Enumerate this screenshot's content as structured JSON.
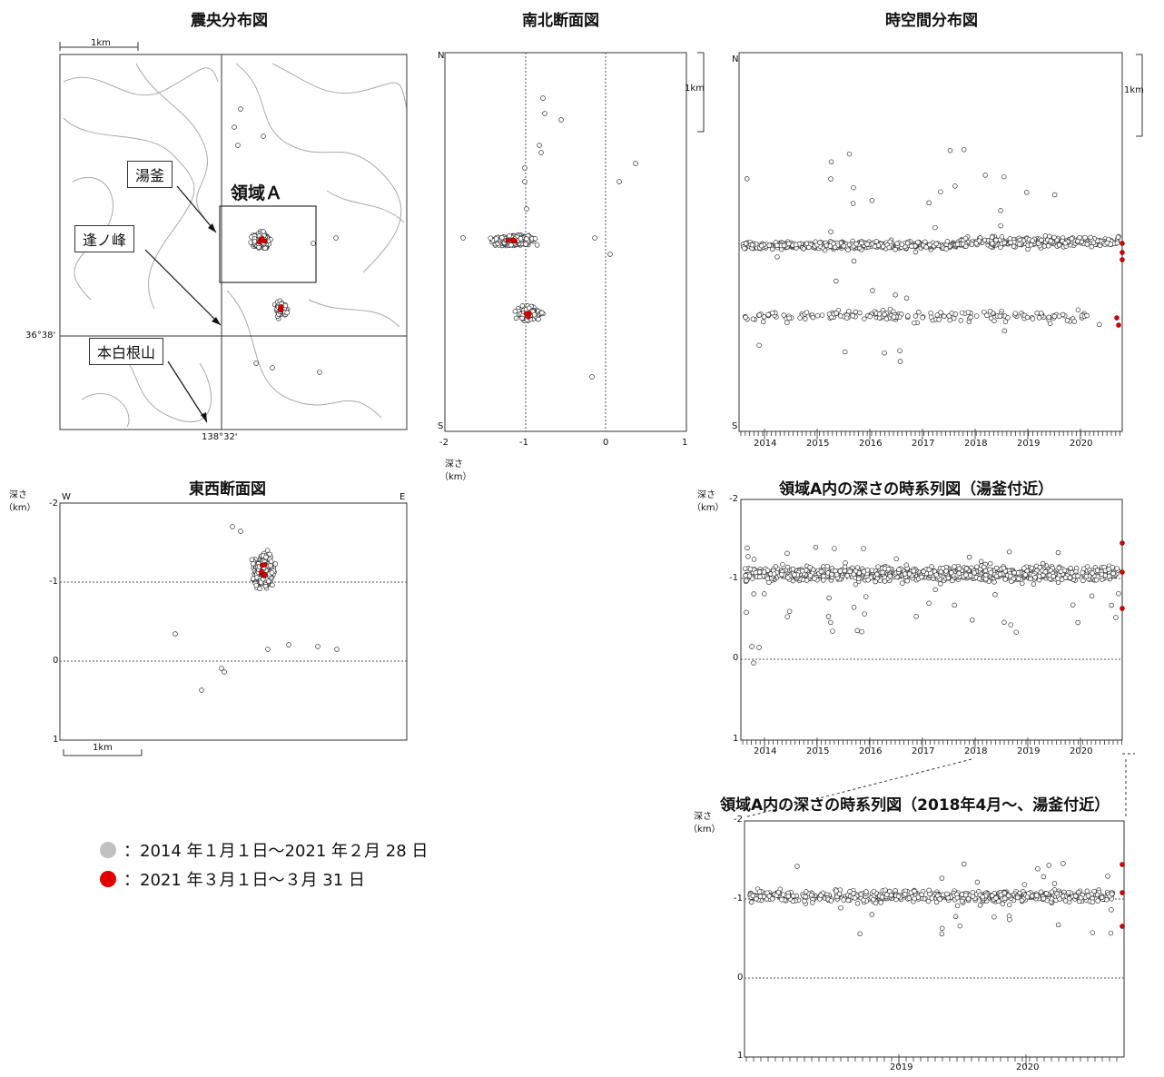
{
  "colors": {
    "gray": "#c0c0c0",
    "red": "#e00000",
    "axis": "#333333",
    "contour": "#aaaaaa"
  },
  "map": {
    "title": "震央分布図",
    "scale_label": "1km",
    "lat_label": "36°38'",
    "lon_label": "138°32'",
    "places": {
      "yugama": "湯釜",
      "ainomine": "逢ノ峰",
      "motoshirane": "本白根山"
    },
    "region_a": "領域Ａ"
  },
  "ns_section": {
    "title": "南北断面図",
    "n_label": "N",
    "s_label": "S",
    "scale_label": "1km",
    "x_ticks": [
      "-2",
      "-1",
      "0",
      "1"
    ],
    "depth_label": "深さ",
    "unit_label": "（km）"
  },
  "st_plot": {
    "title": "時空間分布図",
    "n_label": "N",
    "s_label": "S",
    "scale_label": "1km",
    "years": [
      "2014",
      "2015",
      "2016",
      "2017",
      "2018",
      "2019",
      "2020"
    ]
  },
  "ew_section": {
    "title": "東西断面図",
    "depth_label": "深さ",
    "unit_label": "（km）",
    "w_label": "W",
    "e_label": "E",
    "y_ticks": [
      "-2",
      "-1",
      "0",
      "1"
    ],
    "scale_label": "1km"
  },
  "ts_a": {
    "title": "領域A内の深さの時系列図（湯釜付近）",
    "depth_label": "深さ",
    "unit_label": "（km）",
    "y_ticks": [
      "-2",
      "-1",
      "0",
      "1"
    ],
    "years": [
      "2014",
      "2015",
      "2016",
      "2017",
      "2018",
      "2019",
      "2020"
    ]
  },
  "ts_b": {
    "title": "領域A内の深さの時系列図（2018年4月～、湯釜付近）",
    "depth_label": "深さ",
    "unit_label": "（km）",
    "y_ticks": [
      "-2",
      "-1",
      "0",
      "1"
    ],
    "years": [
      "2019",
      "2020"
    ]
  },
  "legend": {
    "gray_text": "：2014 年１月１日～2021 年２月 28 日",
    "red_text": "：2021 年３月１日～３月 31 日"
  },
  "chart_data": [
    {
      "type": "scatter",
      "title": "震央分布図",
      "description_axes": "map",
      "series": [
        {
          "name": "2014 年１月１日～2021 年２月 28 日",
          "cluster_centers": [
            [
              0.3,
              0.32
            ],
            [
              0.63,
              0.66
            ]
          ]
        },
        {
          "name": "2021 年３月１日～３月 31 日"
        }
      ]
    },
    {
      "type": "scatter",
      "title": "南北断面図",
      "xlim": [
        -2,
        1
      ],
      "x_ticks": [
        -2,
        -1,
        0,
        1
      ]
    },
    {
      "type": "scatter",
      "title": "時空間分布図",
      "x": [
        "2014",
        "2015",
        "2016",
        "2017",
        "2018",
        "2019",
        "2020"
      ]
    },
    {
      "type": "scatter",
      "title": "東西断面図",
      "ylim": [
        -2,
        1
      ],
      "y_ticks": [
        -2,
        -1,
        0,
        1
      ]
    },
    {
      "type": "scatter",
      "title": "領域A内の深さの時系列図（湯釜付近）",
      "ylim": [
        -2,
        1
      ],
      "x": [
        "2014",
        "2015",
        "2016",
        "2017",
        "2018",
        "2019",
        "2020"
      ],
      "typical_depth": -1.0
    },
    {
      "type": "scatter",
      "title": "領域A内の深さの時系列図（2018年4月～、湯釜付近）",
      "ylim": [
        -2,
        1
      ],
      "x": [
        "2019",
        "2020"
      ],
      "typical_depth": -1.0
    }
  ]
}
